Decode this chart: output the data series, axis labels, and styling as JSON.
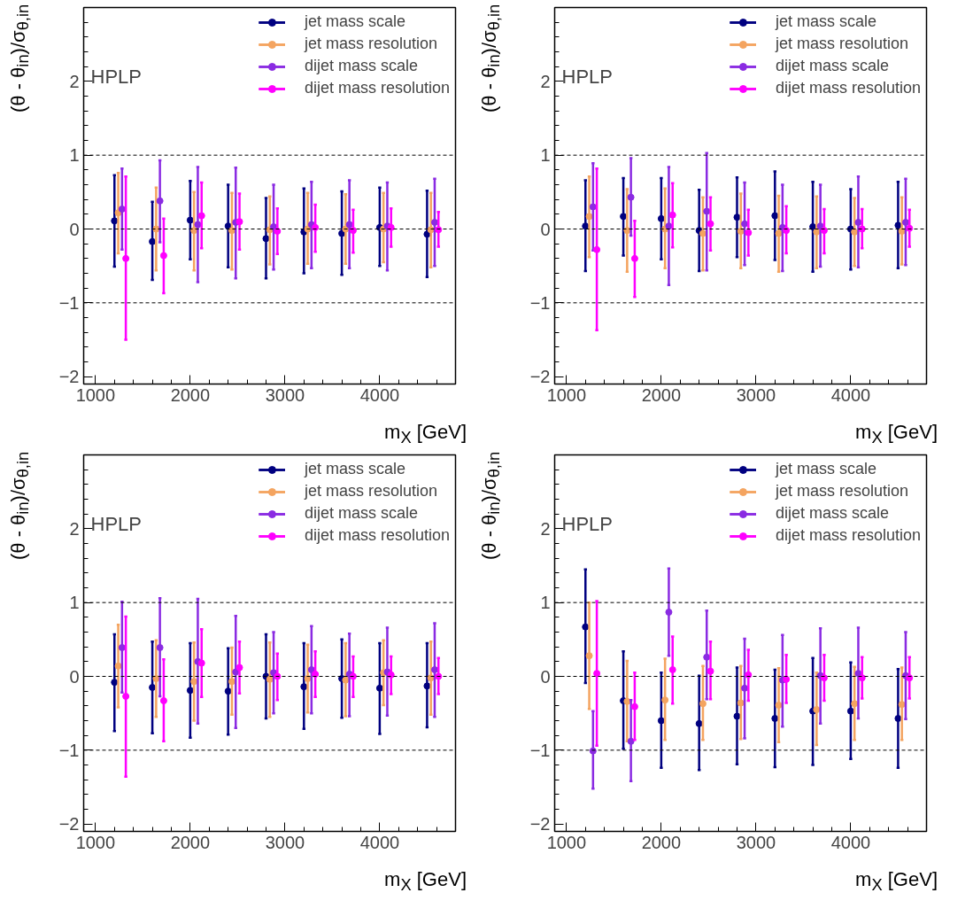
{
  "chart_data": [
    {
      "type": "scatter",
      "xlabel": "m$_{X}$ [GeV]",
      "ylabel": "(θ - θ$_{in}$)/σ$_{θ,in}$",
      "annotations": [
        "HPLP"
      ],
      "xlim": [
        875,
        4800
      ],
      "ylim": [
        -2.1,
        3
      ],
      "xticks": [
        1000,
        2000,
        3000,
        4000
      ],
      "yticks": [
        -2,
        -1,
        0,
        1,
        2
      ],
      "grid": false,
      "legend": "top right",
      "marker": "circle",
      "ref_lines": [
        {
          "axis": "y",
          "value": 1,
          "line_style": "dashed"
        },
        {
          "axis": "y",
          "value": 0,
          "line_style": "dashed"
        },
        {
          "axis": "y",
          "value": -1,
          "line_style": "dashed"
        }
      ],
      "series": [
        {
          "name": "jet mass scale",
          "color": "#000080",
          "x": [
            1200,
            1600,
            2000,
            2400,
            2800,
            3200,
            3600,
            4000,
            4500
          ],
          "values": [
            0.11,
            -0.17,
            0.12,
            0.04,
            -0.13,
            -0.04,
            -0.06,
            0.02,
            -0.07
          ],
          "errors": [
            [
              -0.51,
              0.73
            ],
            [
              -0.69,
              0.37
            ],
            [
              -0.41,
              0.65
            ],
            [
              -0.52,
              0.6
            ],
            [
              -0.67,
              0.42
            ],
            [
              -0.6,
              0.55
            ],
            [
              -0.62,
              0.51
            ],
            [
              -0.5,
              0.56
            ],
            [
              -0.65,
              0.52
            ]
          ]
        },
        {
          "name": "jet mass resolution",
          "color": "#f4a460",
          "x": [
            1240,
            1640,
            2040,
            2440,
            2840,
            3240,
            3640,
            4040,
            4540
          ],
          "values": [
            0.22,
            0.0,
            -0.02,
            -0.02,
            -0.01,
            0.0,
            0.0,
            0.0,
            -0.01
          ],
          "errors": [
            [
              -0.33,
              0.76
            ],
            [
              -0.56,
              0.56
            ],
            [
              -0.56,
              0.5
            ],
            [
              -0.55,
              0.49
            ],
            [
              -0.48,
              0.44
            ],
            [
              -0.47,
              0.49
            ],
            [
              -0.47,
              0.47
            ],
            [
              -0.45,
              0.49
            ],
            [
              -0.52,
              0.49
            ]
          ]
        },
        {
          "name": "dijet mass scale",
          "color": "#8a2be2",
          "x": [
            1280,
            1680,
            2080,
            2480,
            2880,
            3280,
            3680,
            4080,
            4580
          ],
          "values": [
            0.27,
            0.38,
            0.06,
            0.09,
            0.03,
            0.06,
            0.06,
            0.04,
            0.09
          ],
          "errors": [
            [
              -0.28,
              0.82
            ],
            [
              -0.18,
              0.93
            ],
            [
              -0.72,
              0.84
            ],
            [
              -0.67,
              0.83
            ],
            [
              -0.55,
              0.6
            ],
            [
              -0.53,
              0.64
            ],
            [
              -0.53,
              0.66
            ],
            [
              -0.56,
              0.63
            ],
            [
              -0.5,
              0.68
            ]
          ]
        },
        {
          "name": "dijet mass resolution",
          "color": "#ff00ff",
          "x": [
            1320,
            1720,
            2120,
            2520,
            2920,
            3320,
            3720,
            4120,
            4620
          ],
          "values": [
            -0.4,
            -0.36,
            0.18,
            0.1,
            -0.03,
            0.02,
            -0.02,
            0.02,
            -0.01
          ],
          "errors": [
            [
              -1.5,
              0.71
            ],
            [
              -0.87,
              0.14
            ],
            [
              -0.26,
              0.63
            ],
            [
              -0.28,
              0.48
            ],
            [
              -0.34,
              0.28
            ],
            [
              -0.31,
              0.33
            ],
            [
              -0.32,
              0.26
            ],
            [
              -0.24,
              0.28
            ],
            [
              -0.24,
              0.23
            ]
          ]
        }
      ]
    },
    {
      "type": "scatter",
      "xlabel": "m$_{X}$ [GeV]",
      "ylabel": "(θ - θ$_{in}$)/σ$_{θ,in}$",
      "annotations": [
        "HPLP"
      ],
      "xlim": [
        875,
        4800
      ],
      "ylim": [
        -2.1,
        3
      ],
      "xticks": [
        1000,
        2000,
        3000,
        4000
      ],
      "yticks": [
        -2,
        -1,
        0,
        1,
        2
      ],
      "grid": false,
      "legend": "top right",
      "marker": "circle",
      "ref_lines": [
        {
          "axis": "y",
          "value": 1,
          "line_style": "dashed"
        },
        {
          "axis": "y",
          "value": 0,
          "line_style": "dashed"
        },
        {
          "axis": "y",
          "value": -1,
          "line_style": "dashed"
        }
      ],
      "series": [
        {
          "name": "jet mass scale",
          "color": "#000080",
          "x": [
            1200,
            1600,
            2000,
            2400,
            2800,
            3200,
            3600,
            4000,
            4500
          ],
          "values": [
            0.04,
            0.17,
            0.14,
            -0.02,
            0.16,
            0.18,
            0.03,
            0.0,
            0.05
          ],
          "errors": [
            [
              -0.57,
              0.66
            ],
            [
              -0.36,
              0.69
            ],
            [
              -0.41,
              0.69
            ],
            [
              -0.57,
              0.53
            ],
            [
              -0.38,
              0.7
            ],
            [
              -0.42,
              0.78
            ],
            [
              -0.58,
              0.64
            ],
            [
              -0.55,
              0.54
            ],
            [
              -0.53,
              0.64
            ]
          ]
        },
        {
          "name": "jet mass resolution",
          "color": "#f4a460",
          "x": [
            1240,
            1640,
            2040,
            2440,
            2840,
            3240,
            3640,
            4040,
            4540
          ],
          "values": [
            0.17,
            -0.02,
            0.0,
            -0.06,
            -0.03,
            -0.06,
            -0.04,
            -0.04,
            -0.03
          ],
          "errors": [
            [
              -0.38,
              0.71
            ],
            [
              -0.58,
              0.54
            ],
            [
              -0.53,
              0.55
            ],
            [
              -0.56,
              0.43
            ],
            [
              -0.53,
              0.48
            ],
            [
              -0.58,
              0.45
            ],
            [
              -0.53,
              0.44
            ],
            [
              -0.5,
              0.42
            ],
            [
              -0.48,
              0.43
            ]
          ]
        },
        {
          "name": "dijet mass scale",
          "color": "#8a2be2",
          "x": [
            1280,
            1680,
            2080,
            2480,
            2880,
            3280,
            3680,
            4080,
            4580
          ],
          "values": [
            0.3,
            0.43,
            0.04,
            0.24,
            0.07,
            0.02,
            0.04,
            0.09,
            0.09
          ],
          "errors": [
            [
              -0.29,
              0.89
            ],
            [
              -0.09,
              0.96
            ],
            [
              -0.76,
              0.84
            ],
            [
              -0.56,
              1.03
            ],
            [
              -0.49,
              0.63
            ],
            [
              -0.57,
              0.6
            ],
            [
              -0.51,
              0.6
            ],
            [
              -0.52,
              0.71
            ],
            [
              -0.49,
              0.68
            ]
          ]
        },
        {
          "name": "dijet mass resolution",
          "color": "#ff00ff",
          "x": [
            1320,
            1720,
            2120,
            2520,
            2920,
            3320,
            3720,
            4120,
            4620
          ],
          "values": [
            -0.28,
            -0.4,
            0.19,
            0.07,
            -0.05,
            -0.02,
            -0.02,
            0.0,
            0.01
          ],
          "errors": [
            [
              -1.37,
              0.82
            ],
            [
              -0.92,
              0.11
            ],
            [
              -0.25,
              0.62
            ],
            [
              -0.29,
              0.43
            ],
            [
              -0.36,
              0.26
            ],
            [
              -0.33,
              0.31
            ],
            [
              -0.33,
              0.27
            ],
            [
              -0.26,
              0.27
            ],
            [
              -0.24,
              0.26
            ]
          ]
        }
      ]
    },
    {
      "type": "scatter",
      "xlabel": "m$_{X}$ [GeV]",
      "ylabel": "(θ - θ$_{in}$)/σ$_{θ,in}$",
      "annotations": [
        "HPLP"
      ],
      "xlim": [
        875,
        4800
      ],
      "ylim": [
        -2.1,
        3
      ],
      "xticks": [
        1000,
        2000,
        3000,
        4000
      ],
      "yticks": [
        -2,
        -1,
        0,
        1,
        2
      ],
      "grid": false,
      "legend": "top right",
      "marker": "circle",
      "ref_lines": [
        {
          "axis": "y",
          "value": 1,
          "line_style": "dashed"
        },
        {
          "axis": "y",
          "value": 0,
          "line_style": "dashed"
        },
        {
          "axis": "y",
          "value": -1,
          "line_style": "dashed"
        }
      ],
      "series": [
        {
          "name": "jet mass scale",
          "color": "#000080",
          "x": [
            1200,
            1600,
            2000,
            2400,
            2800,
            3200,
            3600,
            4000,
            4500
          ],
          "values": [
            -0.08,
            -0.15,
            -0.19,
            -0.2,
            0.0,
            -0.14,
            -0.03,
            -0.16,
            -0.13
          ],
          "errors": [
            [
              -0.74,
              0.57
            ],
            [
              -0.77,
              0.47
            ],
            [
              -0.83,
              0.45
            ],
            [
              -0.79,
              0.38
            ],
            [
              -0.57,
              0.57
            ],
            [
              -0.71,
              0.45
            ],
            [
              -0.56,
              0.5
            ],
            [
              -0.78,
              0.45
            ],
            [
              -0.69,
              0.45
            ]
          ]
        },
        {
          "name": "jet mass resolution",
          "color": "#f4a460",
          "x": [
            1240,
            1640,
            2040,
            2440,
            2840,
            3240,
            3640,
            4040,
            4540
          ],
          "values": [
            0.14,
            -0.03,
            -0.07,
            -0.07,
            -0.04,
            -0.03,
            -0.05,
            0.05,
            -0.02
          ],
          "errors": [
            [
              -0.42,
              0.7
            ],
            [
              -0.55,
              0.49
            ],
            [
              -0.6,
              0.46
            ],
            [
              -0.52,
              0.39
            ],
            [
              -0.55,
              0.46
            ],
            [
              -0.49,
              0.43
            ],
            [
              -0.54,
              0.45
            ],
            [
              -0.39,
              0.49
            ],
            [
              -0.52,
              0.47
            ]
          ]
        },
        {
          "name": "dijet mass scale",
          "color": "#8a2be2",
          "x": [
            1280,
            1680,
            2080,
            2480,
            2880,
            3280,
            3680,
            4080,
            4580
          ],
          "values": [
            0.39,
            0.39,
            0.2,
            0.06,
            0.05,
            0.09,
            0.03,
            0.06,
            0.09
          ],
          "errors": [
            [
              -0.22,
              1.01
            ],
            [
              -0.27,
              1.06
            ],
            [
              -0.64,
              1.05
            ],
            [
              -0.7,
              0.82
            ],
            [
              -0.5,
              0.6
            ],
            [
              -0.5,
              0.68
            ],
            [
              -0.54,
              0.58
            ],
            [
              -0.53,
              0.66
            ],
            [
              -0.55,
              0.72
            ]
          ]
        },
        {
          "name": "dijet mass resolution",
          "color": "#ff00ff",
          "x": [
            1320,
            1720,
            2120,
            2520,
            2920,
            3320,
            3720,
            4120,
            4620
          ],
          "values": [
            -0.27,
            -0.33,
            0.18,
            0.12,
            0.0,
            0.03,
            0.0,
            0.02,
            0.0
          ],
          "errors": [
            [
              -1.36,
              0.81
            ],
            [
              -0.88,
              0.23
            ],
            [
              -0.28,
              0.64
            ],
            [
              -0.23,
              0.47
            ],
            [
              -0.32,
              0.31
            ],
            [
              -0.28,
              0.34
            ],
            [
              -0.28,
              0.27
            ],
            [
              -0.24,
              0.27
            ],
            [
              -0.24,
              0.25
            ]
          ]
        }
      ]
    },
    {
      "type": "scatter",
      "xlabel": "m$_{X}$ [GeV]",
      "ylabel": "(θ - θ$_{in}$)/σ$_{θ,in}$",
      "annotations": [
        "HPLP"
      ],
      "xlim": [
        875,
        4800
      ],
      "ylim": [
        -2.1,
        3
      ],
      "xticks": [
        1000,
        2000,
        3000,
        4000
      ],
      "yticks": [
        -2,
        -1,
        0,
        1,
        2
      ],
      "grid": false,
      "legend": "top right",
      "marker": "circle",
      "ref_lines": [
        {
          "axis": "y",
          "value": 1,
          "line_style": "dashed"
        },
        {
          "axis": "y",
          "value": 0,
          "line_style": "dashed"
        },
        {
          "axis": "y",
          "value": -1,
          "line_style": "dashed"
        }
      ],
      "series": [
        {
          "name": "jet mass scale",
          "color": "#000080",
          "x": [
            1200,
            1600,
            2000,
            2400,
            2800,
            3200,
            3600,
            4000,
            4500
          ],
          "values": [
            0.67,
            -0.33,
            -0.6,
            -0.64,
            -0.54,
            -0.57,
            -0.47,
            -0.47,
            -0.57
          ],
          "errors": [
            [
              -0.09,
              1.45
            ],
            [
              -0.98,
              0.34
            ],
            [
              -1.24,
              0.05
            ],
            [
              -1.27,
              0.01
            ],
            [
              -1.19,
              0.12
            ],
            [
              -1.23,
              0.09
            ],
            [
              -1.2,
              0.25
            ],
            [
              -1.12,
              0.19
            ],
            [
              -1.24,
              0.1
            ]
          ]
        },
        {
          "name": "jet mass resolution",
          "color": "#f4a460",
          "x": [
            1240,
            1640,
            2040,
            2440,
            2840,
            3240,
            3640,
            4040,
            4540
          ],
          "values": [
            0.28,
            -0.34,
            -0.32,
            -0.37,
            -0.36,
            -0.39,
            -0.45,
            -0.37,
            -0.38
          ],
          "errors": [
            [
              -0.44,
              1.0
            ],
            [
              -0.88,
              0.21
            ],
            [
              -0.86,
              0.24
            ],
            [
              -0.86,
              0.14
            ],
            [
              -0.85,
              0.14
            ],
            [
              -0.89,
              0.11
            ],
            [
              -0.93,
              0.05
            ],
            [
              -0.86,
              0.13
            ],
            [
              -0.86,
              0.12
            ]
          ]
        },
        {
          "name": "dijet mass scale",
          "color": "#8a2be2",
          "x": [
            1280,
            1680,
            2080,
            2480,
            2880,
            3280,
            3680,
            4080,
            4580
          ],
          "values": [
            -1.01,
            -0.88,
            0.87,
            0.26,
            -0.16,
            -0.05,
            0.01,
            0.04,
            0.01
          ],
          "errors": [
            [
              -1.52,
              -0.47
            ],
            [
              -1.42,
              -0.32
            ],
            [
              0.28,
              1.46
            ],
            [
              -0.31,
              0.89
            ],
            [
              -0.84,
              0.51
            ],
            [
              -0.68,
              0.56
            ],
            [
              -0.64,
              0.65
            ],
            [
              -0.57,
              0.66
            ],
            [
              -0.58,
              0.6
            ]
          ]
        },
        {
          "name": "dijet mass resolution",
          "color": "#ff00ff",
          "x": [
            1320,
            1720,
            2120,
            2520,
            2920,
            3320,
            3720,
            4120,
            4620
          ],
          "values": [
            0.04,
            -0.41,
            0.09,
            0.07,
            0.02,
            -0.04,
            -0.02,
            -0.02,
            -0.02
          ],
          "errors": [
            [
              -0.94,
              1.02
            ],
            [
              -0.86,
              0.05
            ],
            [
              -0.37,
              0.54
            ],
            [
              -0.31,
              0.47
            ],
            [
              -0.33,
              0.36
            ],
            [
              -0.36,
              0.29
            ],
            [
              -0.33,
              0.29
            ],
            [
              -0.3,
              0.26
            ],
            [
              -0.3,
              0.26
            ]
          ]
        }
      ]
    }
  ]
}
